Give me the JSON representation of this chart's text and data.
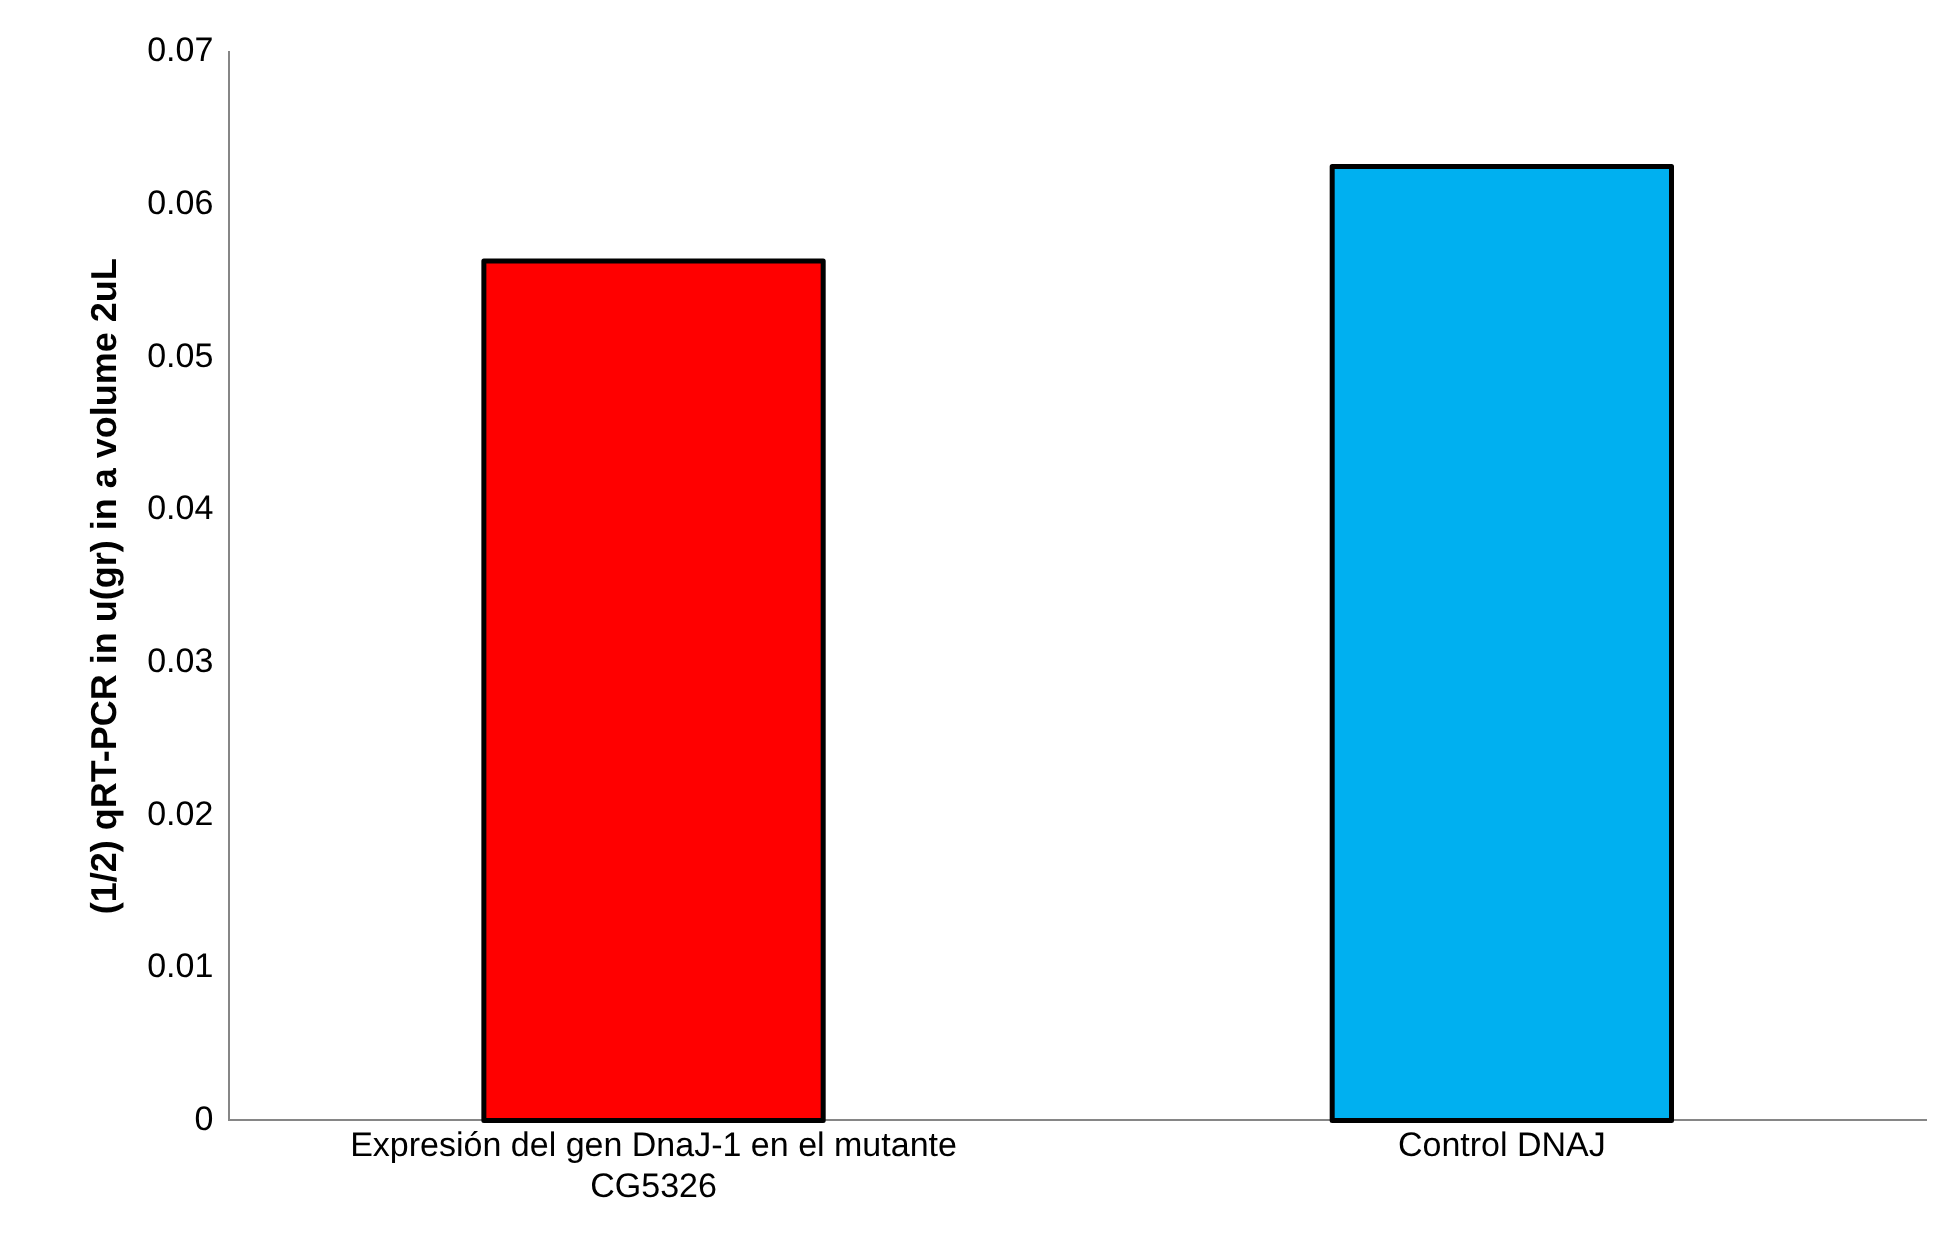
{
  "chart_data": {
    "type": "bar",
    "ylabel": "(1/2) qRT-PCR in u(gr) in a volume 2uL",
    "categories": [
      "Expresión del gen DnaJ-1 en el mutante CG5326",
      "Control DNAJ"
    ],
    "values": [
      0.0563,
      0.0625
    ],
    "colors": [
      "#ff0000",
      "#00b0f0"
    ],
    "ylim": [
      0,
      0.07
    ],
    "yticks": [
      0,
      0.01,
      0.02,
      0.03,
      0.04,
      0.05,
      0.06,
      0.07
    ],
    "grid": false,
    "legend": false
  }
}
